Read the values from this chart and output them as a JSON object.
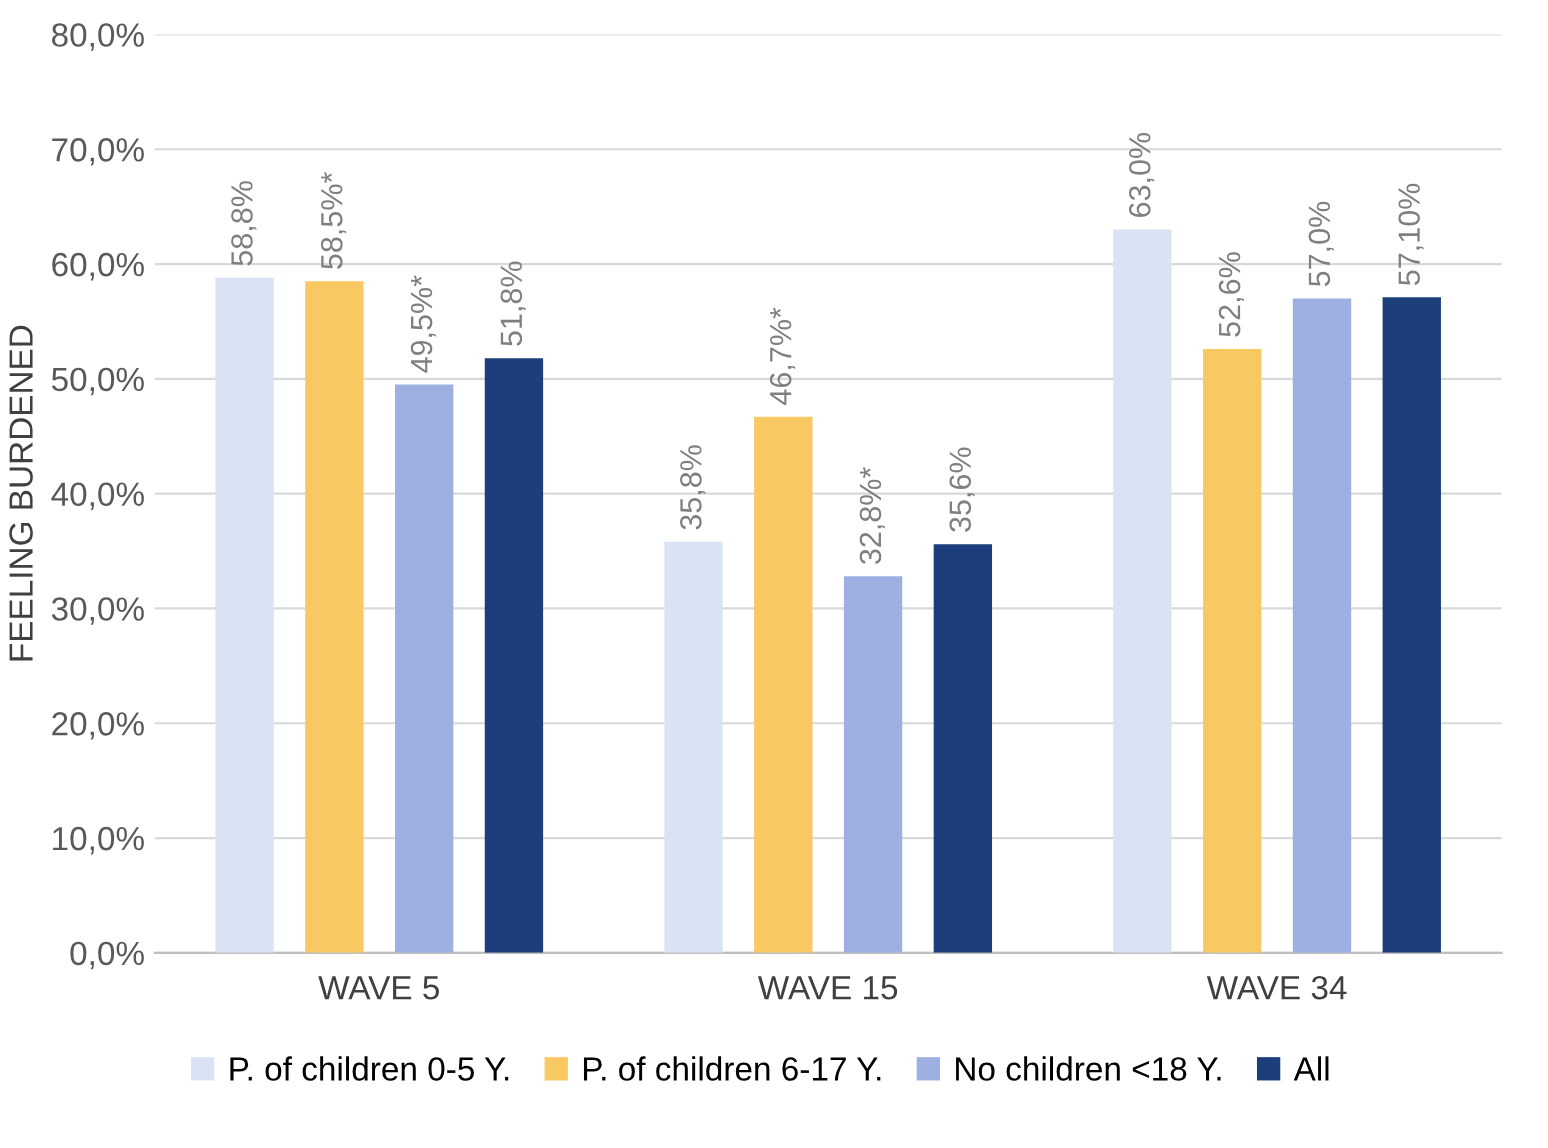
{
  "chart_data": {
    "type": "bar",
    "ylabel": "FEELING BURDENED",
    "categories": [
      "WAVE 5",
      "WAVE 15",
      "WAVE 34"
    ],
    "series": [
      {
        "name": "P. of children 0-5 Y.",
        "color": "#dae3f3",
        "values": [
          58.8,
          35.8,
          63.0
        ],
        "value_labels": [
          "58,8%",
          "35,8%",
          "63,0%"
        ]
      },
      {
        "name": "P. of children 6-17 Y.",
        "color": "#f8c862",
        "values": [
          58.5,
          46.7,
          52.6
        ],
        "value_labels": [
          "58,5%*",
          "46,7%*",
          "52,6%"
        ]
      },
      {
        "name": "No children <18 Y.",
        "color": "#9eb0e2",
        "values": [
          49.5,
          32.8,
          57.0
        ],
        "value_labels": [
          "49,5%*",
          "32,8%*",
          "57,0%"
        ]
      },
      {
        "name": "All",
        "color": "#1c3f7c",
        "values": [
          51.8,
          35.6,
          57.1
        ],
        "value_labels": [
          "51,8%",
          "35,6%",
          "57,10%"
        ]
      }
    ],
    "ylim": [
      0,
      80
    ],
    "yticks": [
      {
        "value": 0,
        "label": "0,0%"
      },
      {
        "value": 10,
        "label": "10,0%"
      },
      {
        "value": 20,
        "label": "20,0%"
      },
      {
        "value": 30,
        "label": "30,0%"
      },
      {
        "value": 40,
        "label": "40,0%"
      },
      {
        "value": 50,
        "label": "50,0%"
      },
      {
        "value": 60,
        "label": "60,0%"
      },
      {
        "value": 70,
        "label": "70,0%"
      },
      {
        "value": 80,
        "label": "80,0%"
      }
    ],
    "grid": "y",
    "legend": "bottom"
  }
}
